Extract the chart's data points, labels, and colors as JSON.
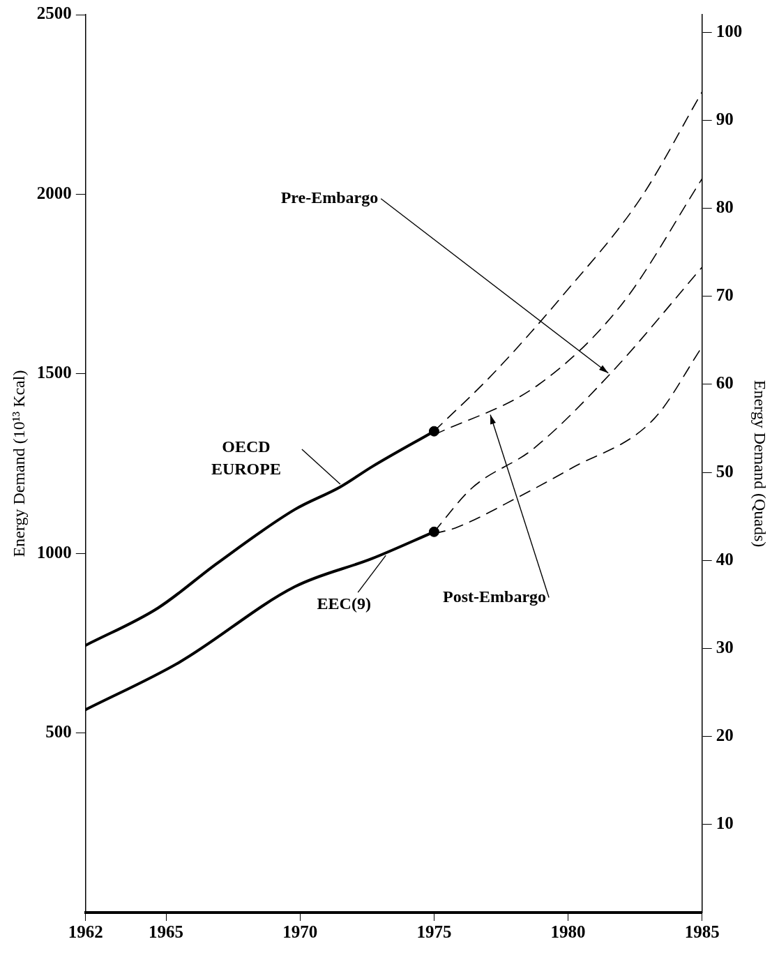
{
  "chart_data": {
    "type": "line",
    "ylabel": "Energy Demand (10¹³ Kcal)",
    "y2label": "Energy Demand (Quads)",
    "xlim": [
      1962,
      1985
    ],
    "xticks": [
      1962,
      1965,
      1970,
      1975,
      1980,
      1985
    ],
    "ylim": [
      0,
      2500
    ],
    "yticks": [
      500,
      1000,
      1500,
      2000,
      2500
    ],
    "y2lim": [
      0,
      102
    ],
    "y2ticks": [
      10,
      20,
      30,
      40,
      50,
      60,
      70,
      80,
      90,
      100
    ],
    "grid": false,
    "series": [
      {
        "name": "OECD EUROPE",
        "line_style": "solid",
        "color": "#000000",
        "x": [
          1962,
          1964.7,
          1966.9,
          1969.8,
          1971.5,
          1972.7,
          1975
        ],
        "values": [
          744,
          848,
          972,
          1122,
          1185,
          1242,
          1340
        ]
      },
      {
        "name": "EEC(9)",
        "line_style": "solid",
        "color": "#000000",
        "x": [
          1962,
          1965.5,
          1969.8,
          1972.7,
          1975
        ],
        "values": [
          565,
          697,
          907,
          986,
          1060
        ]
      },
      {
        "line_style": "dashed",
        "color": "#000000",
        "x": [
          1975,
          1977.2,
          1979.8,
          1982.7,
          1985
        ],
        "values": [
          1340,
          1500,
          1718,
          1988,
          2285
        ]
      },
      {
        "line_style": "dashed",
        "color": "#000000",
        "x": [
          1975,
          1978.9,
          1982,
          1985
        ],
        "values": [
          1330,
          1470,
          1693,
          2043
        ]
      },
      {
        "line_style": "dashed",
        "color": "#000000",
        "x": [
          1975,
          1976.4,
          1978.7,
          1981.6,
          1985
        ],
        "values": [
          1060,
          1181,
          1291,
          1502,
          1797
        ]
      },
      {
        "line_style": "dashed",
        "color": "#000000",
        "x": [
          1975,
          1975.8,
          1978.2,
          1980.1,
          1983.2,
          1985
        ],
        "values": [
          1055,
          1071,
          1159,
          1236,
          1374,
          1575
        ]
      },
      {
        "type": "scatter",
        "marker": "circle",
        "color": "#000000",
        "x": [
          1975,
          1975
        ],
        "values": [
          1340,
          1060
        ]
      }
    ],
    "annotations": [
      {
        "text": "Pre-Embargo",
        "x": 1981.5,
        "y": 1502
      },
      {
        "text": "Post-Embargo",
        "x": 1977.1,
        "y": 1386
      }
    ]
  }
}
